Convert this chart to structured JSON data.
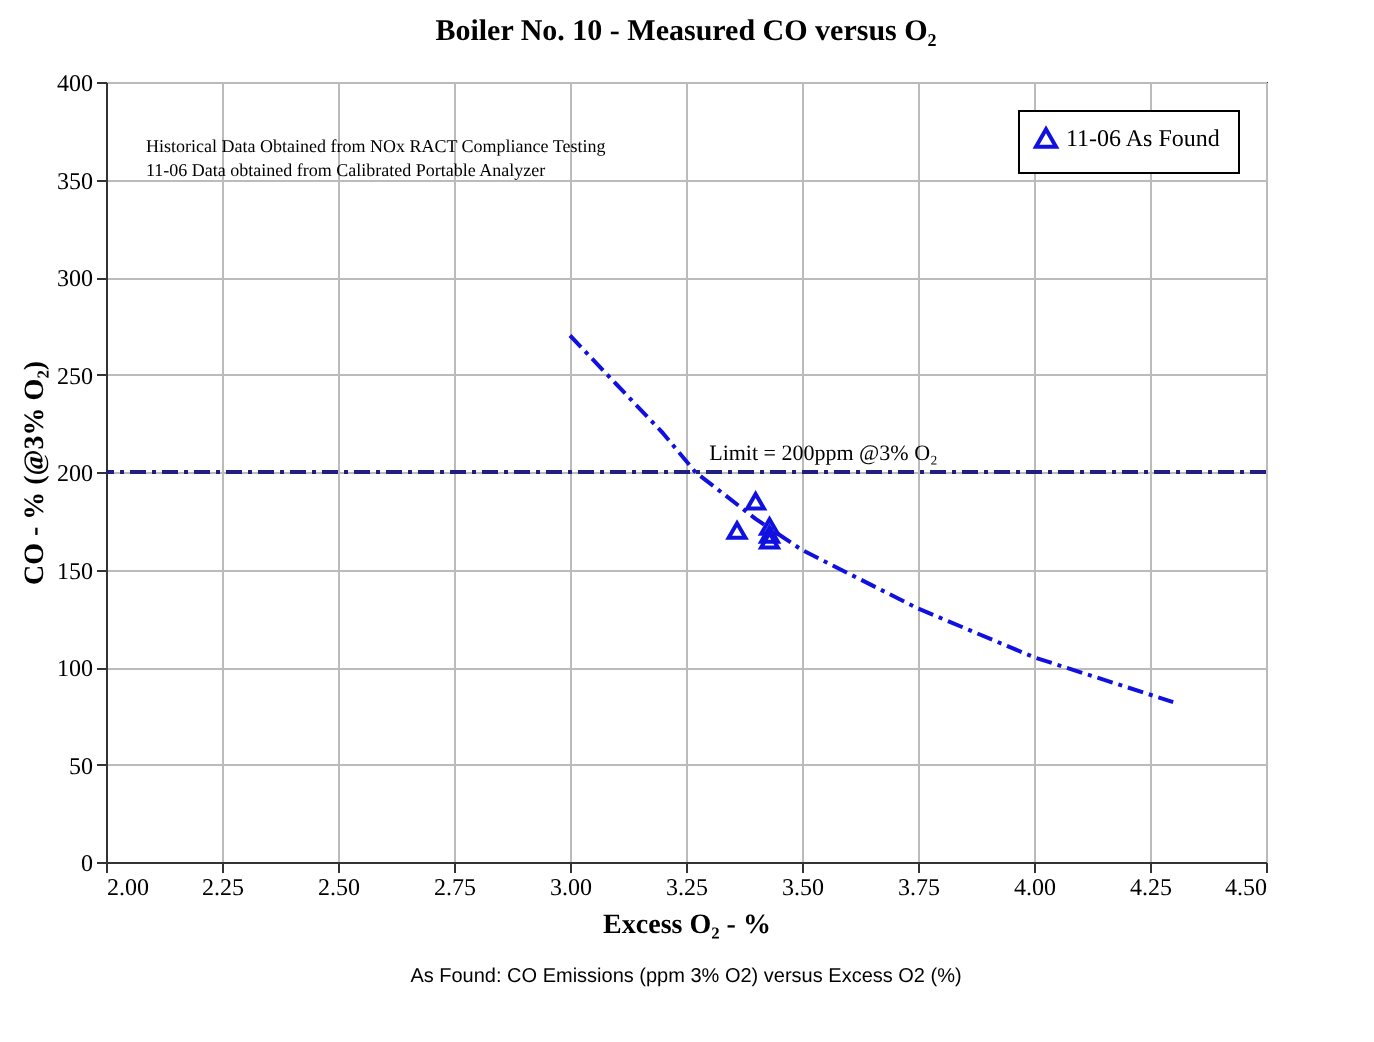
{
  "chart_data": {
    "type": "scatter",
    "title": "Boiler No. 10 - Measured CO versus O₂",
    "xlabel": "Excess O₂ - %",
    "ylabel": "CO - % (@3% O₂)",
    "annotations": [
      "Historical Data Obtained from NOx RACT Compliance Testing",
      "11-06 Data obtained from Calibrated Portable Analyzer",
      "As Found: CO Emissions (ppm 3% O2) versus Excess O2 (%)"
    ],
    "series": [
      {
        "name": "11-06 As Found",
        "marker": "triangle",
        "color": "#1010e0",
        "x": [
          3.36,
          3.4,
          3.43,
          3.43,
          3.43
        ],
        "values": [
          170,
          185,
          172,
          168,
          165
        ]
      },
      {
        "type": "line",
        "marker": "none",
        "line_style": "dashed",
        "color": "#1010e0",
        "x": [
          3.0,
          3.1,
          3.2,
          3.27,
          3.4,
          3.5,
          3.75,
          4.0,
          4.3
        ],
        "values": [
          270,
          245,
          220,
          200,
          176,
          160,
          130,
          105,
          82
        ]
      }
    ],
    "ref_lines": [
      {
        "axis": "y",
        "value": 200,
        "label": "Limit = 200ppm @3% O₂",
        "color": "#202080",
        "line_style": "dashed"
      }
    ],
    "xlim": [
      2.0,
      4.5
    ],
    "ylim": [
      0,
      400
    ],
    "xticks": [
      {
        "value": 2.0,
        "label": "2.00"
      },
      {
        "value": 2.25,
        "label": "2.25"
      },
      {
        "value": 2.5,
        "label": "2.50"
      },
      {
        "value": 2.75,
        "label": "2.75"
      },
      {
        "value": 3.0,
        "label": "3.00"
      },
      {
        "value": 3.25,
        "label": "3.25"
      },
      {
        "value": 3.5,
        "label": "3.50"
      },
      {
        "value": 3.75,
        "label": "3.75"
      },
      {
        "value": 4.0,
        "label": "4.00"
      },
      {
        "value": 4.25,
        "label": "4.25"
      },
      {
        "value": 4.5,
        "label": "4.50"
      }
    ],
    "yticks": [
      0,
      50,
      100,
      150,
      200,
      250,
      300,
      350,
      400
    ],
    "grid": true,
    "legend": "top right"
  }
}
